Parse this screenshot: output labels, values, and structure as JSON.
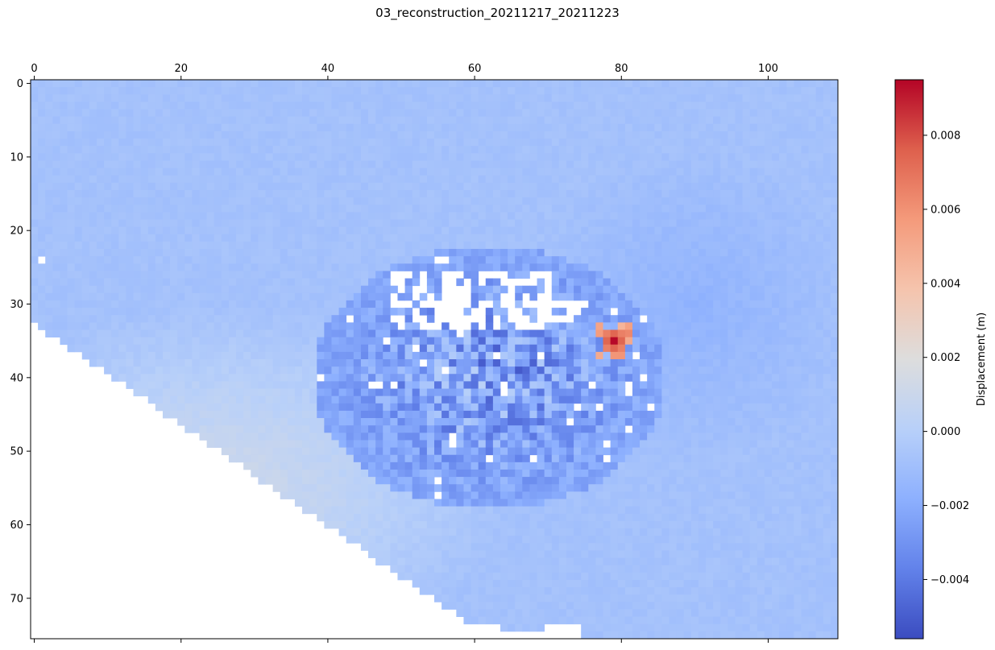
{
  "chart_data": {
    "type": "heatmap",
    "title": "03_reconstruction_20211217_20211223",
    "colormap": "coolwarm",
    "grid": false,
    "legend": "colorbar-right",
    "x_axis_position": "top",
    "x_ticks": [
      0,
      20,
      40,
      60,
      80,
      100
    ],
    "y_ticks": [
      0,
      10,
      20,
      30,
      40,
      50,
      60,
      70
    ],
    "xlim": [
      -0.5,
      109.5
    ],
    "ylim": [
      75.5,
      -0.5
    ],
    "n_cols": 110,
    "n_rows": 76,
    "colorbar": {
      "label": "Displacement (m)",
      "range": [
        -0.0056,
        0.0095
      ],
      "ticks": [
        -0.004,
        -0.002,
        0.0,
        0.002,
        0.004,
        0.006,
        0.008
      ],
      "tick_labels": [
        "−0.004",
        "−0.002",
        "0.000",
        "0.002",
        "0.004",
        "0.006",
        "0.008"
      ]
    },
    "features": {
      "background_value": -0.0008,
      "southwest_zone_value": 0.0012,
      "east_trough_value": -0.0022,
      "noisy_region": {
        "center_col": 62,
        "center_row": 40,
        "radius_cols": 24,
        "radius_rows": 18
      },
      "peak": {
        "col": 79,
        "row": 35,
        "value": 0.0094
      },
      "no_data_regions": "lower-left wedge below diagonal edge; gaps near rows 26-33, cols 47-70; small holes"
    }
  }
}
